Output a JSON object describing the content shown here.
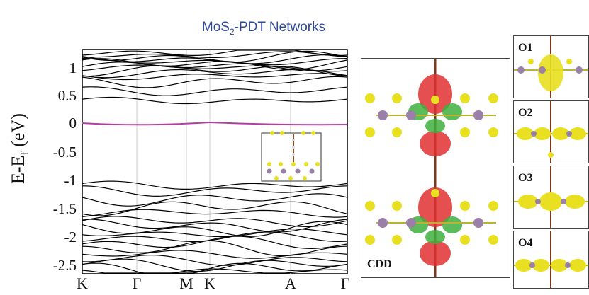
{
  "title_main": "MoS",
  "title_sub": "2",
  "title_rest": "-PDT Networks",
  "y_axis_label": "E-E",
  "y_axis_label_sub": "f",
  "y_axis_unit": "(eV)",
  "chart_data": {
    "type": "line",
    "title": "MoS2-PDT Networks",
    "ylabel": "E-Ef (eV)",
    "ylim": [
      -2.75,
      1.3
    ],
    "yticks": [
      "1",
      "0.5",
      "0",
      "-0.5",
      "-1",
      "-1.5",
      "-2",
      "-2.5"
    ],
    "xticks": [
      "K",
      "Γ",
      "M",
      "K",
      "A",
      "Γ"
    ],
    "fermi_level": 0
  },
  "panels": {
    "cdd_label": "CDD",
    "o1_label": "O1",
    "o2_label": "O2",
    "o3_label": "O3",
    "o4_label": "O4"
  },
  "colors": {
    "title": "#2f4a9a",
    "fermi": "#b040a0",
    "bands": "#000000",
    "sulfur": "#e8e020",
    "molybdenum": "#9a7fa8",
    "cdd_positive": "#e03030",
    "cdd_negative": "#40b040"
  }
}
